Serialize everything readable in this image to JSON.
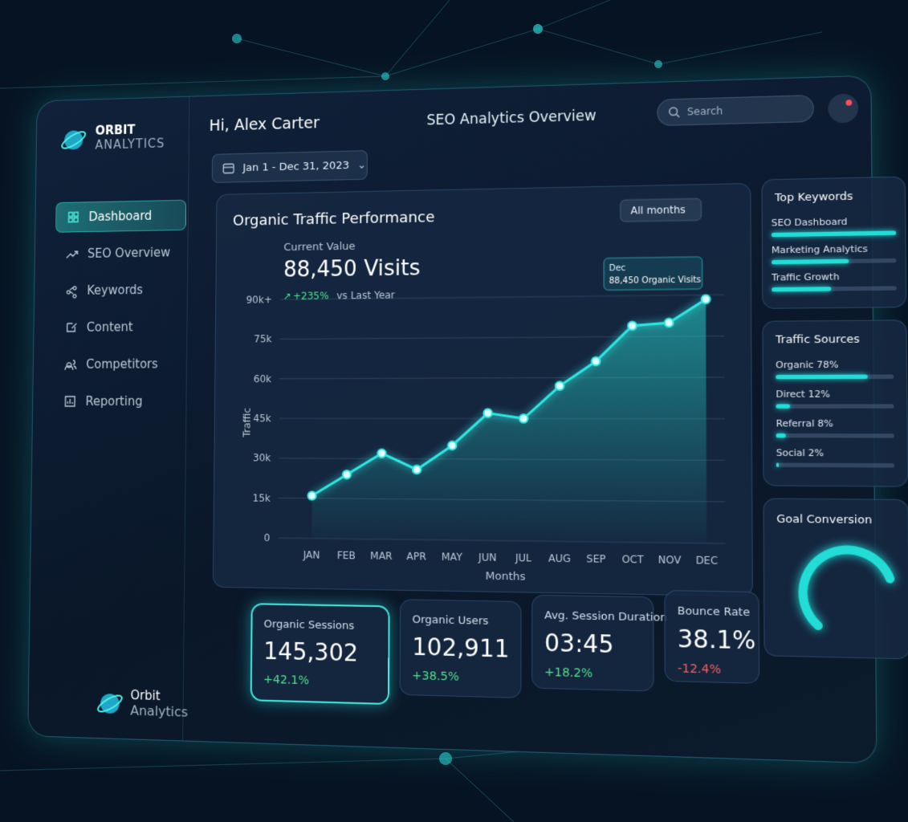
{
  "sidebar": {
    "brand_top": "ORBIT",
    "brand_bottom": "ANALYTICS",
    "nav": [
      "Dashboard",
      "SEO Overview",
      "Keywords",
      "Content",
      "Competitors",
      "Reporting"
    ],
    "footer_brand_top": "Orbit",
    "footer_brand_bottom": "Analytics"
  },
  "header": {
    "greeting": "Hi, Alex Carter",
    "title": "SEO Analytics Overview",
    "search_placeholder": "Search",
    "date_range": "Jan 1 - Dec 31, 2023"
  },
  "chart_data": {
    "type": "line",
    "title": "Organic Traffic Performance",
    "filter": "All months",
    "current_label": "Current Value",
    "current_value": "88,450 Visits",
    "change": "+235%",
    "change_text": "vs Last Year",
    "tooltip_title": "Dec",
    "tooltip_text": "88,450 Organic Visits",
    "x_label": "Months",
    "y_label": "Traffic",
    "categories": [
      "JAN",
      "FEB",
      "MAR",
      "APR",
      "MAY",
      "JUN",
      "JUL",
      "AUG",
      "SEP",
      "OCT",
      "NOV",
      "DEC"
    ],
    "values": [
      16000,
      24000,
      32000,
      26000,
      35000,
      47000,
      45000,
      57000,
      66000,
      79000,
      80000,
      88450
    ],
    "color": "#2ee6e0",
    "ylim": [
      0,
      90000
    ],
    "yticks": [
      0,
      {
        "value": 15000,
        "label": "15k"
      },
      {
        "value": 30000,
        "label": "30k"
      },
      {
        "value": 45000,
        "label": "45k"
      },
      {
        "value": 60000,
        "label": "60k"
      },
      {
        "value": 75000,
        "label": "75k"
      },
      {
        "value": 90000,
        "label": "90k+"
      }
    ],
    "grid": true
  },
  "top_keywords": {
    "title": "Top Keywords",
    "items": [
      {
        "name": "SEO Dashboard",
        "value": 100
      },
      {
        "name": "Marketing Analytics",
        "value": 62
      },
      {
        "name": "Traffic Growth",
        "value": 48
      }
    ]
  },
  "traffic_sources": {
    "title": "Traffic Sources",
    "items": [
      {
        "label": "Organic 78%",
        "value": 78
      },
      {
        "label": "Direct 12%",
        "value": 12
      },
      {
        "label": "Referral 8%",
        "value": 8
      },
      {
        "label": "Social 2%",
        "value": 2
      }
    ]
  },
  "goal_conversion": {
    "title": "Goal Conversion"
  },
  "kpis": [
    {
      "label": "Organic Sessions",
      "value": "145,302",
      "change": "+42.1%"
    },
    {
      "label": "Organic Users",
      "value": "102,911",
      "change": "+38.5%"
    },
    {
      "label": "Avg. Session Duration",
      "value": "03:45",
      "change": "+18.2%"
    },
    {
      "label": "Bounce Rate",
      "value": "38.1%",
      "change": "-12.4%"
    }
  ]
}
